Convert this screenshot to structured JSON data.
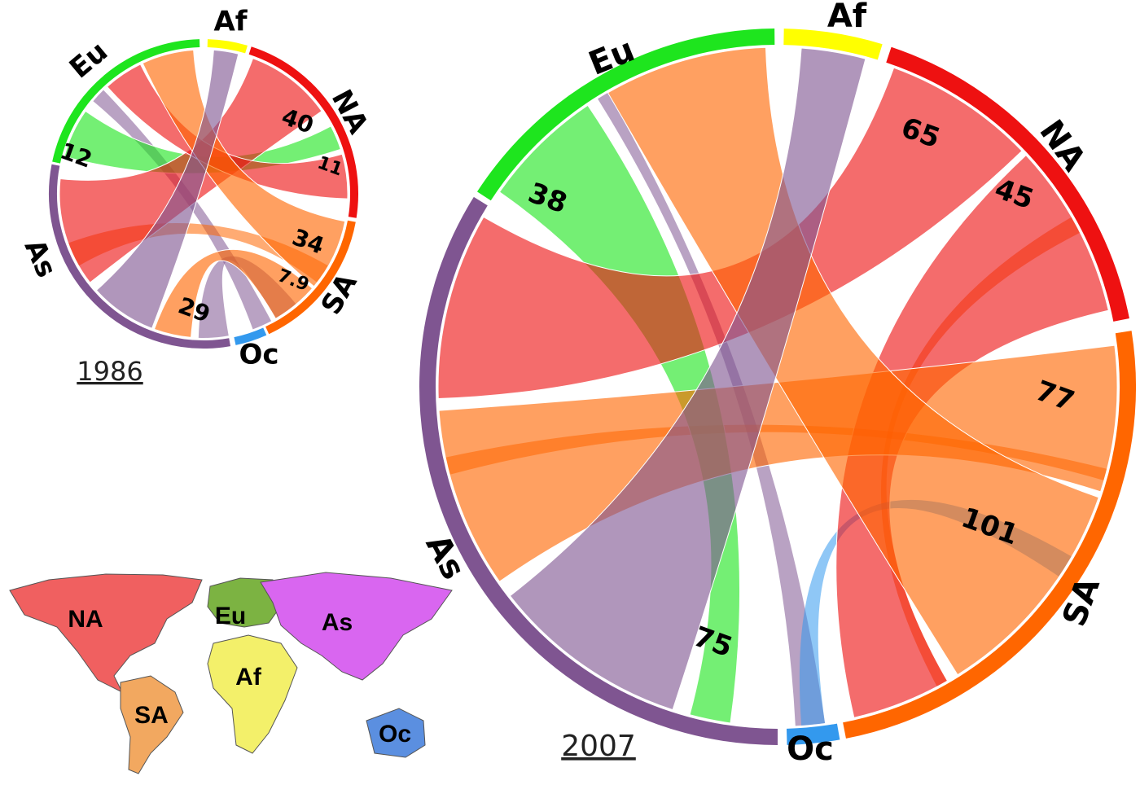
{
  "chart_data": [
    {
      "type": "chord",
      "title": "1986",
      "groups": [
        {
          "name": "Eu",
          "color": "#1ee51e",
          "flows": [
            12
          ]
        },
        {
          "name": "Af",
          "color": "#ffff00"
        },
        {
          "name": "NA",
          "color": "#ee1111",
          "flows": [
            40,
            11
          ]
        },
        {
          "name": "SA",
          "color": "#ff6600",
          "flows": [
            34,
            7.9
          ]
        },
        {
          "name": "Oc",
          "color": "#3399ee"
        },
        {
          "name": "As",
          "color": "#7f5591",
          "flows": [
            29
          ]
        }
      ]
    },
    {
      "type": "chord",
      "title": "2007",
      "groups": [
        {
          "name": "Eu",
          "color": "#1ee51e",
          "flows": [
            38
          ]
        },
        {
          "name": "Af",
          "color": "#ffff00"
        },
        {
          "name": "NA",
          "color": "#ee1111",
          "flows": [
            65,
            45
          ]
        },
        {
          "name": "SA",
          "color": "#ff6600",
          "flows": [
            77,
            101
          ]
        },
        {
          "name": "Oc",
          "color": "#3399ee"
        },
        {
          "name": "As",
          "color": "#7f5591",
          "flows": [
            75
          ]
        }
      ]
    }
  ],
  "map": {
    "regions": [
      {
        "label": "NA",
        "color": "#f06060"
      },
      {
        "label": "SA",
        "color": "#f2a860"
      },
      {
        "label": "Eu",
        "color": "#7cb342"
      },
      {
        "label": "Af",
        "color": "#f3f06a"
      },
      {
        "label": "As",
        "color": "#d966f0"
      },
      {
        "label": "Oc",
        "color": "#5b8fe0"
      }
    ]
  }
}
